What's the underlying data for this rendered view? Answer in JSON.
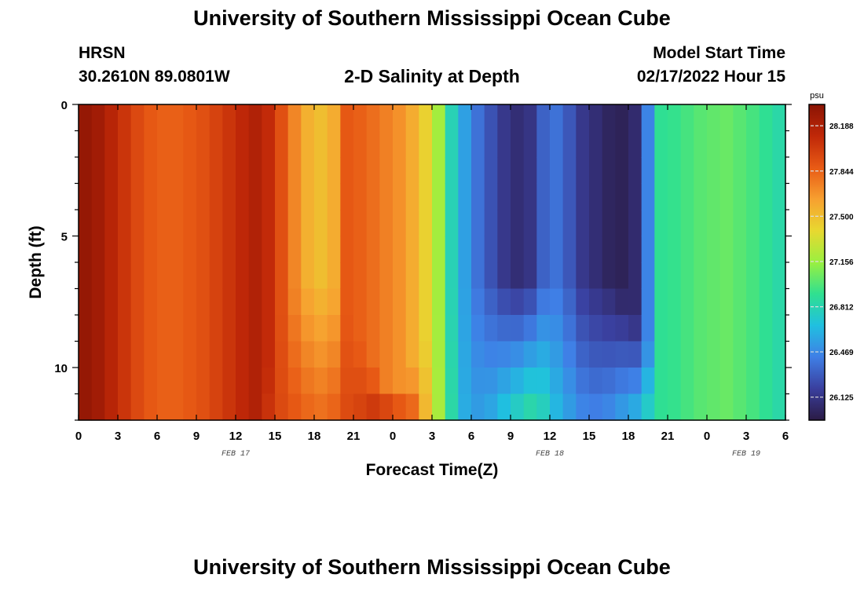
{
  "header": {
    "title": "University of Southern Mississippi Ocean Cube",
    "station": "HRSN",
    "coords": "30.2610N  89.0801W",
    "subtitle": "2-D Salinity at Depth",
    "start_label": "Model Start Time",
    "start_value": "02/17/2022 Hour 15"
  },
  "footer": {
    "title": "University of Southern Mississippi Ocean Cube"
  },
  "colors": {
    "scale": [
      "#2b1b45",
      "#3a3f9e",
      "#3f7fe6",
      "#20c0e0",
      "#30e090",
      "#9af040",
      "#e8d830",
      "#f7a030",
      "#e85a15",
      "#c02808",
      "#8a1404"
    ]
  },
  "chart_data": {
    "type": "heatmap",
    "title": "2-D Salinity at Depth",
    "xlabel": "Forecast Time(Z)",
    "ylabel": "Depth (ft)",
    "x_tick_labels": [
      "0",
      "3",
      "6",
      "9",
      "12",
      "15",
      "18",
      "21",
      "0",
      "3",
      "6",
      "9",
      "12",
      "15",
      "18",
      "21",
      "0",
      "3",
      "6"
    ],
    "x_range_hours": [
      0,
      54
    ],
    "date_labels": [
      {
        "text": "FEB 17",
        "hour": 12
      },
      {
        "text": "FEB 18",
        "hour": 36
      },
      {
        "text": "FEB 19",
        "hour": 51
      }
    ],
    "y_tick_labels": [
      "0",
      "5",
      "10"
    ],
    "y_range_ft": [
      0,
      12
    ],
    "y_inverted": true,
    "colorbar": {
      "unit": "psu",
      "min": 25.95,
      "max": 28.35,
      "ticks": [
        "28.188",
        "27.844",
        "27.500",
        "27.156",
        "26.812",
        "26.469",
        "26.125"
      ]
    },
    "hourly_surface_psu": [
      28.3,
      28.25,
      28.15,
      28.05,
      27.95,
      27.88,
      27.85,
      27.85,
      27.88,
      27.92,
      27.98,
      28.05,
      28.12,
      28.18,
      28.1,
      27.92,
      27.72,
      27.56,
      27.5,
      27.58,
      27.88,
      27.85,
      27.8,
      27.74,
      27.68,
      27.58,
      27.42,
      27.18,
      26.8,
      26.55,
      26.38,
      26.26,
      26.14,
      26.08,
      26.12,
      26.32,
      26.38,
      26.28,
      26.14,
      26.08,
      26.02,
      26.0,
      26.06,
      26.45,
      26.9,
      26.92,
      26.96,
      27.0,
      27.02,
      27.04,
      27.0,
      26.96,
      26.9,
      26.84
    ],
    "hourly_bottom_psu": [
      28.3,
      28.25,
      28.15,
      28.05,
      27.95,
      27.88,
      27.85,
      27.85,
      27.88,
      27.92,
      27.98,
      28.05,
      28.12,
      28.15,
      28.05,
      27.95,
      27.9,
      27.85,
      27.82,
      27.86,
      27.95,
      28.0,
      28.1,
      28.18,
      28.08,
      27.9,
      27.55,
      27.2,
      26.85,
      26.6,
      26.55,
      26.6,
      26.72,
      26.82,
      26.9,
      26.82,
      26.66,
      26.56,
      26.48,
      26.46,
      26.5,
      26.58,
      26.66,
      26.8,
      26.9,
      26.92,
      26.96,
      27.0,
      27.02,
      27.04,
      27.0,
      26.96,
      26.9,
      26.84
    ],
    "mixed_depth_ft": [
      12,
      12,
      12,
      12,
      12,
      12,
      12,
      12,
      12,
      12,
      12,
      12,
      12,
      12,
      10,
      8,
      7,
      6.5,
      6.5,
      7,
      8,
      9,
      10,
      11,
      11,
      10,
      9,
      8,
      7,
      6.5,
      6.5,
      6.5,
      6.5,
      6.5,
      6.5,
      6.5,
      6.5,
      6.5,
      6.5,
      6.5,
      6.5,
      7,
      8,
      9,
      12,
      12,
      12,
      12,
      12,
      12,
      12,
      12,
      12,
      12
    ]
  }
}
